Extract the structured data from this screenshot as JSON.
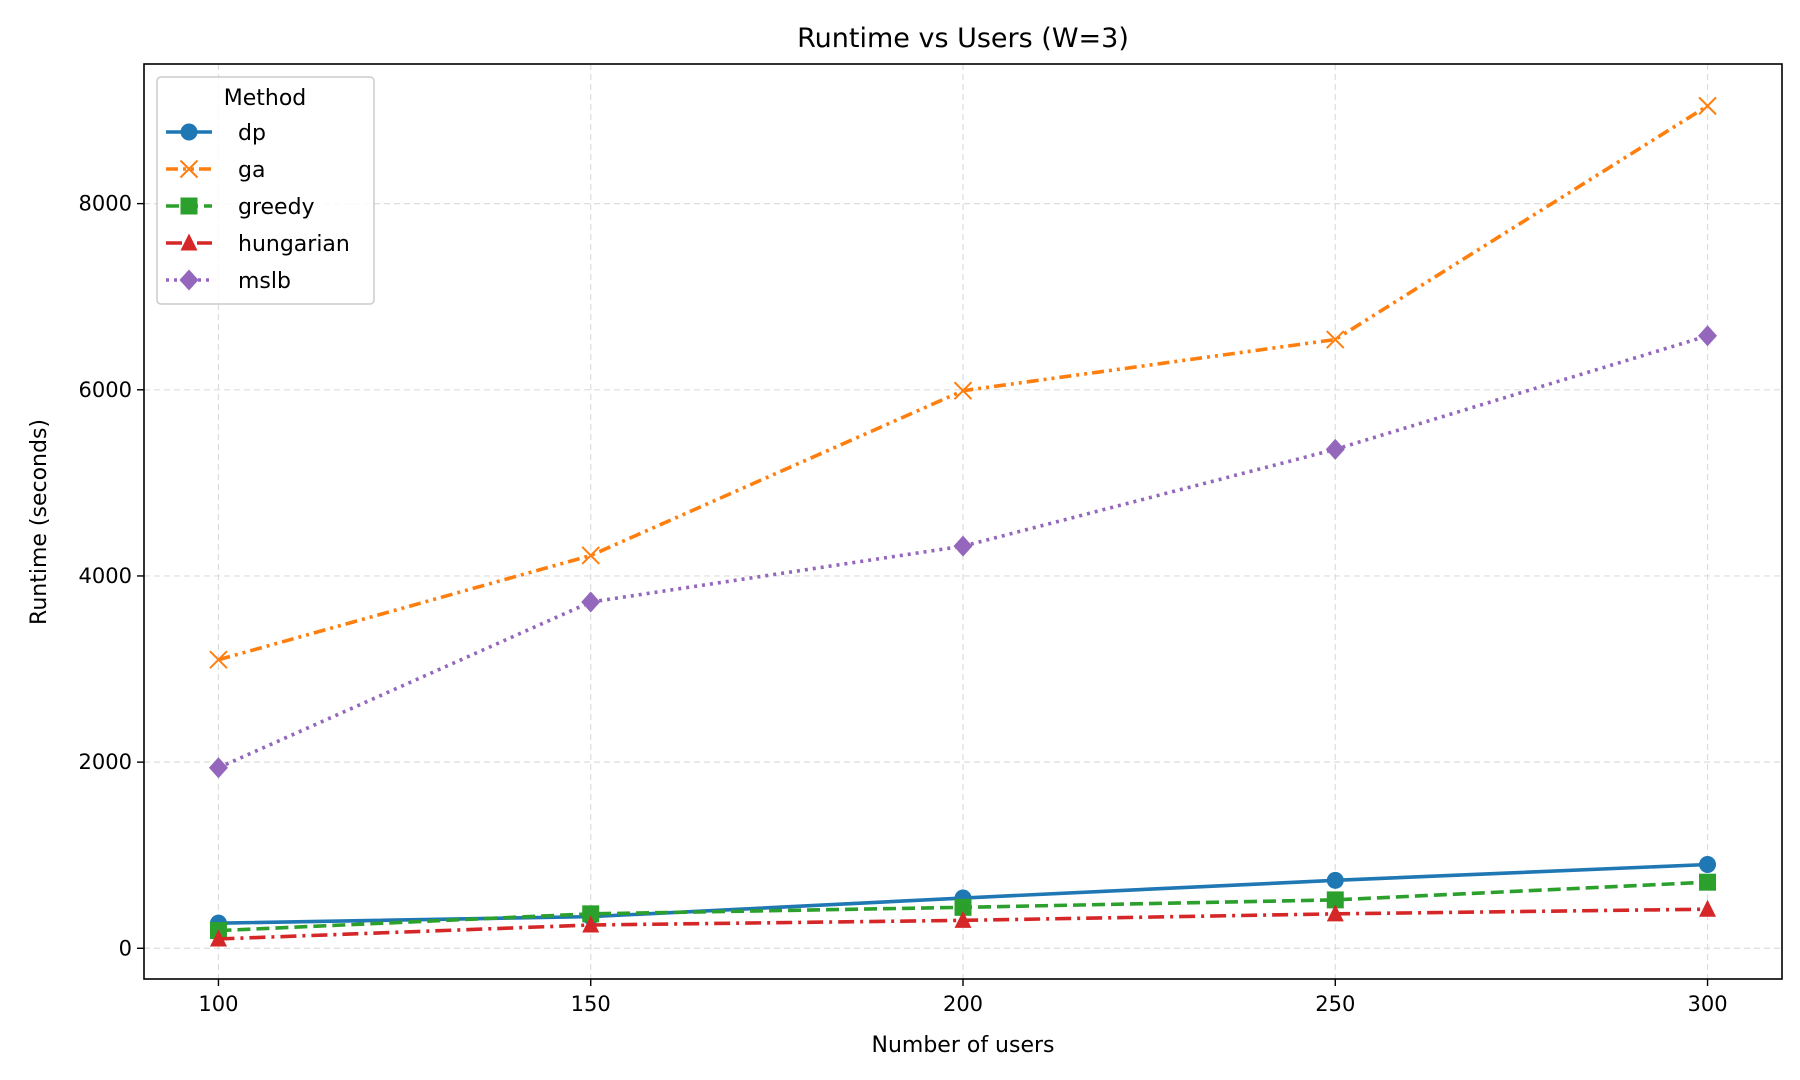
{
  "chart_data": {
    "type": "line",
    "title": "Runtime vs Users (W=3)",
    "xlabel": "Number of users",
    "ylabel": "Runtime (seconds)",
    "x": [
      100,
      150,
      200,
      250,
      300
    ],
    "xticks": [
      100,
      150,
      200,
      250,
      300
    ],
    "yticks": [
      0,
      2000,
      4000,
      6000,
      8000
    ],
    "xlim": [
      90,
      310
    ],
    "ylim": [
      -330,
      9500
    ],
    "grid": true,
    "legend": {
      "title": "Method",
      "placement": "top-left"
    },
    "series": [
      {
        "name": "dp",
        "color": "#1f77b4",
        "marker": "circle",
        "linestyle": "solid",
        "values": [
          270,
          340,
          540,
          730,
          900
        ]
      },
      {
        "name": "ga",
        "color": "#ff7f0e",
        "marker": "x",
        "linestyle": "dashdotdot",
        "values": [
          3100,
          4220,
          5990,
          6540,
          9050
        ]
      },
      {
        "name": "greedy",
        "color": "#2ca02c",
        "marker": "square",
        "linestyle": "dashed",
        "values": [
          190,
          370,
          440,
          520,
          710
        ]
      },
      {
        "name": "hungarian",
        "color": "#d62728",
        "marker": "triangle",
        "linestyle": "dashdot",
        "values": [
          100,
          250,
          300,
          370,
          420
        ]
      },
      {
        "name": "mslb",
        "color": "#9467bd",
        "marker": "diamond",
        "linestyle": "dotted",
        "values": [
          1940,
          3720,
          4320,
          5360,
          6580
        ]
      }
    ]
  }
}
